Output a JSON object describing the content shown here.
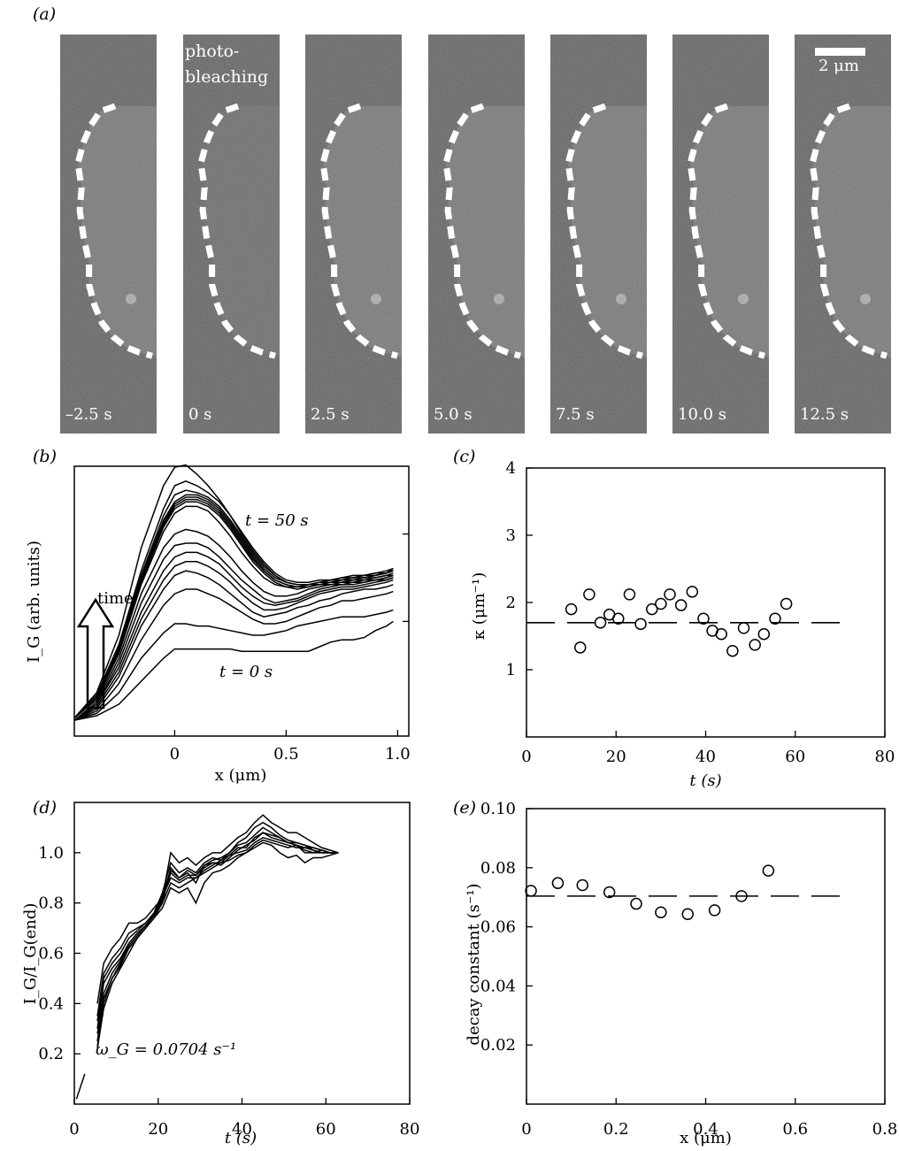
{
  "panel_labels": {
    "a": "(a)",
    "b": "(b)",
    "c": "(c)",
    "d": "(d)",
    "e": "(e)"
  },
  "microscopy": {
    "frames": [
      {
        "time": "–2.5 s"
      },
      {
        "time": "0 s"
      },
      {
        "time": "2.5 s"
      },
      {
        "time": "5.0 s"
      },
      {
        "time": "7.5 s"
      },
      {
        "time": "10.0 s"
      },
      {
        "time": "12.5 s"
      }
    ],
    "photobleach_label_line1": "photo-",
    "photobleach_label_line2": "bleaching",
    "scale_bar_label": "2 μm",
    "colors": {
      "background": "#3a3a3a",
      "outline": "#ffffff"
    }
  },
  "chart_data": [
    {
      "id": "b",
      "type": "line",
      "xlabel": "x (μm)",
      "ylabel": "I_G (arb. units)",
      "xlim": [
        -0.45,
        1.05
      ],
      "xticks": [
        "0",
        "0.5",
        "1.0"
      ],
      "annotations": [
        "t = 50 s",
        "t = 0 s",
        "time"
      ],
      "x": [
        -0.45,
        -0.35,
        -0.25,
        -0.15,
        -0.05,
        0.0,
        0.05,
        0.1,
        0.15,
        0.2,
        0.25,
        0.3,
        0.35,
        0.4,
        0.45,
        0.5,
        0.55,
        0.6,
        0.65,
        0.7,
        0.75,
        0.8,
        0.85,
        0.9,
        0.95,
        0.98
      ],
      "series": [
        {
          "values": [
            0.03,
            0.05,
            0.1,
            0.2,
            0.3,
            0.34,
            0.34,
            0.34,
            0.34,
            0.34,
            0.34,
            0.33,
            0.33,
            0.33,
            0.33,
            0.33,
            0.33,
            0.33,
            0.35,
            0.37,
            0.38,
            0.38,
            0.39,
            0.42,
            0.44,
            0.46
          ]
        },
        {
          "values": [
            0.03,
            0.06,
            0.15,
            0.3,
            0.41,
            0.45,
            0.45,
            0.44,
            0.44,
            0.43,
            0.42,
            0.41,
            0.4,
            0.4,
            0.41,
            0.42,
            0.44,
            0.45,
            0.46,
            0.47,
            0.48,
            0.48,
            0.48,
            0.49,
            0.5,
            0.51
          ]
        },
        {
          "values": [
            0.03,
            0.07,
            0.19,
            0.38,
            0.53,
            0.58,
            0.6,
            0.6,
            0.58,
            0.56,
            0.53,
            0.5,
            0.47,
            0.45,
            0.45,
            0.46,
            0.48,
            0.5,
            0.52,
            0.53,
            0.55,
            0.55,
            0.56,
            0.57,
            0.58,
            0.59
          ]
        },
        {
          "values": [
            0.03,
            0.08,
            0.22,
            0.44,
            0.6,
            0.66,
            0.68,
            0.67,
            0.65,
            0.62,
            0.58,
            0.54,
            0.5,
            0.48,
            0.49,
            0.5,
            0.52,
            0.53,
            0.55,
            0.56,
            0.58,
            0.59,
            0.6,
            0.6,
            0.61,
            0.62
          ]
        },
        {
          "values": [
            0.03,
            0.09,
            0.24,
            0.47,
            0.64,
            0.7,
            0.72,
            0.72,
            0.7,
            0.67,
            0.63,
            0.58,
            0.54,
            0.51,
            0.51,
            0.52,
            0.54,
            0.56,
            0.58,
            0.59,
            0.6,
            0.6,
            0.61,
            0.62,
            0.63,
            0.64
          ]
        },
        {
          "values": [
            0.03,
            0.1,
            0.26,
            0.5,
            0.68,
            0.74,
            0.76,
            0.76,
            0.74,
            0.71,
            0.66,
            0.61,
            0.57,
            0.54,
            0.53,
            0.54,
            0.55,
            0.57,
            0.59,
            0.6,
            0.61,
            0.61,
            0.62,
            0.63,
            0.64,
            0.65
          ]
        },
        {
          "values": [
            0.03,
            0.1,
            0.28,
            0.54,
            0.73,
            0.79,
            0.8,
            0.8,
            0.78,
            0.74,
            0.69,
            0.64,
            0.6,
            0.56,
            0.54,
            0.55,
            0.56,
            0.58,
            0.6,
            0.61,
            0.62,
            0.62,
            0.63,
            0.64,
            0.64,
            0.65
          ]
        },
        {
          "values": [
            0.03,
            0.11,
            0.3,
            0.58,
            0.78,
            0.84,
            0.86,
            0.85,
            0.83,
            0.79,
            0.74,
            0.68,
            0.63,
            0.59,
            0.57,
            0.57,
            0.58,
            0.6,
            0.61,
            0.62,
            0.62,
            0.63,
            0.63,
            0.64,
            0.65,
            0.66
          ]
        },
        {
          "values": [
            0.04,
            0.12,
            0.32,
            0.62,
            0.85,
            0.93,
            0.96,
            0.96,
            0.94,
            0.89,
            0.83,
            0.76,
            0.7,
            0.65,
            0.62,
            0.61,
            0.61,
            0.62,
            0.62,
            0.63,
            0.63,
            0.64,
            0.64,
            0.65,
            0.66,
            0.66
          ]
        },
        {
          "values": [
            0.04,
            0.12,
            0.33,
            0.63,
            0.87,
            0.95,
            0.98,
            0.98,
            0.96,
            0.92,
            0.86,
            0.79,
            0.72,
            0.67,
            0.63,
            0.61,
            0.6,
            0.61,
            0.62,
            0.62,
            0.63,
            0.63,
            0.64,
            0.64,
            0.65,
            0.66
          ]
        },
        {
          "values": [
            0.04,
            0.12,
            0.33,
            0.64,
            0.88,
            0.96,
            0.99,
            0.99,
            0.97,
            0.93,
            0.87,
            0.8,
            0.73,
            0.68,
            0.64,
            0.62,
            0.61,
            0.61,
            0.62,
            0.63,
            0.63,
            0.64,
            0.65,
            0.65,
            0.66,
            0.67
          ]
        },
        {
          "values": [
            0.04,
            0.13,
            0.34,
            0.65,
            0.89,
            0.97,
            1.0,
            1.0,
            0.98,
            0.94,
            0.88,
            0.81,
            0.74,
            0.68,
            0.64,
            0.62,
            0.61,
            0.62,
            0.62,
            0.63,
            0.64,
            0.64,
            0.65,
            0.66,
            0.67,
            0.68
          ]
        },
        {
          "values": [
            0.04,
            0.13,
            0.34,
            0.65,
            0.9,
            0.98,
            1.01,
            1.01,
            0.99,
            0.95,
            0.89,
            0.82,
            0.75,
            0.69,
            0.65,
            0.63,
            0.62,
            0.62,
            0.63,
            0.63,
            0.64,
            0.65,
            0.65,
            0.66,
            0.67,
            0.68
          ]
        },
        {
          "values": [
            0.04,
            0.13,
            0.35,
            0.66,
            0.92,
            1.01,
            1.03,
            1.02,
            1.0,
            0.96,
            0.9,
            0.83,
            0.76,
            0.7,
            0.66,
            0.63,
            0.62,
            0.62,
            0.63,
            0.64,
            0.64,
            0.65,
            0.66,
            0.66,
            0.67,
            0.68
          ]
        },
        {
          "values": [
            0.04,
            0.14,
            0.36,
            0.68,
            0.95,
            1.05,
            1.07,
            1.05,
            1.02,
            0.98,
            0.92,
            0.85,
            0.78,
            0.72,
            0.67,
            0.64,
            0.63,
            0.63,
            0.64,
            0.64,
            0.65,
            0.65,
            0.66,
            0.67,
            0.67,
            0.69
          ]
        },
        {
          "values": [
            0.04,
            0.15,
            0.4,
            0.78,
            1.05,
            1.13,
            1.14,
            1.1,
            1.05,
            0.99,
            0.92,
            0.84,
            0.77,
            0.71,
            0.66,
            0.63,
            0.62,
            0.62,
            0.63,
            0.64,
            0.65,
            0.66,
            0.66,
            0.67,
            0.68,
            0.69
          ]
        }
      ]
    },
    {
      "id": "c",
      "type": "scatter",
      "xlabel": "t (s)",
      "ylabel": "κ (μm⁻¹)",
      "xlim": [
        0,
        80
      ],
      "ylim": [
        0,
        4
      ],
      "xticks": [
        "0",
        "20",
        "40",
        "60",
        "80"
      ],
      "yticks": [
        "1",
        "2",
        "3",
        "4"
      ],
      "mean_line": 1.7,
      "points": [
        [
          10,
          1.9
        ],
        [
          12,
          1.33
        ],
        [
          14,
          2.12
        ],
        [
          16.5,
          1.7
        ],
        [
          18.5,
          1.82
        ],
        [
          20.5,
          1.76
        ],
        [
          23,
          2.12
        ],
        [
          25.5,
          1.68
        ],
        [
          28,
          1.9
        ],
        [
          30,
          1.98
        ],
        [
          32,
          2.12
        ],
        [
          34.5,
          1.96
        ],
        [
          37,
          2.16
        ],
        [
          39.5,
          1.76
        ],
        [
          41.5,
          1.58
        ],
        [
          43.5,
          1.53
        ],
        [
          46,
          1.28
        ],
        [
          48.5,
          1.62
        ],
        [
          51,
          1.37
        ],
        [
          53,
          1.53
        ],
        [
          55.5,
          1.76
        ],
        [
          58,
          1.98
        ]
      ]
    },
    {
      "id": "d",
      "type": "line",
      "xlabel": "t (s)",
      "ylabel": "I_G/I_G(end)",
      "xlim": [
        0,
        80
      ],
      "ylim": [
        0,
        1.2
      ],
      "xticks": [
        "0",
        "20",
        "40",
        "60",
        "80"
      ],
      "yticks": [
        "0.2",
        "0.4",
        "0.6",
        "0.8",
        "1.0"
      ],
      "annotation": "ω_G = 0.0704 s⁻¹",
      "fit_segment": [
        [
          0.5,
          0.02
        ],
        [
          2.5,
          0.12
        ]
      ],
      "x": [
        5.5,
        7,
        9,
        11,
        13,
        15,
        17,
        19,
        21,
        23,
        25,
        27,
        29,
        31,
        33,
        35,
        37,
        39,
        41,
        43,
        45,
        47,
        49,
        51,
        53,
        55,
        57,
        59,
        61,
        63
      ],
      "series": [
        {
          "values": [
            0.25,
            0.42,
            0.5,
            0.55,
            0.62,
            0.66,
            0.7,
            0.74,
            0.8,
            0.88,
            0.86,
            0.88,
            0.9,
            0.92,
            0.94,
            0.96,
            0.97,
            0.99,
            1.0,
            1.03,
            1.05,
            1.04,
            1.03,
            1.02,
            1.03,
            1.01,
            1.0,
            1.01,
            1.0,
            1.0
          ]
        },
        {
          "values": [
            0.3,
            0.48,
            0.54,
            0.58,
            0.64,
            0.68,
            0.71,
            0.75,
            0.82,
            0.9,
            0.88,
            0.9,
            0.9,
            0.93,
            0.95,
            0.97,
            0.99,
            1.0,
            1.01,
            1.04,
            1.06,
            1.05,
            1.04,
            1.03,
            1.02,
            1.02,
            1.01,
            1.0,
            1.0,
            1.0
          ]
        },
        {
          "values": [
            0.22,
            0.38,
            0.48,
            0.54,
            0.6,
            0.66,
            0.7,
            0.76,
            0.8,
            0.94,
            0.9,
            0.92,
            0.88,
            0.95,
            0.96,
            0.95,
            0.98,
            1.01,
            1.03,
            1.05,
            1.08,
            1.06,
            1.05,
            1.04,
            1.03,
            1.0,
            1.0,
            1.0,
            1.0,
            1.0
          ]
        },
        {
          "values": [
            0.35,
            0.52,
            0.58,
            0.62,
            0.68,
            0.7,
            0.72,
            0.76,
            0.84,
            0.96,
            0.92,
            0.94,
            0.92,
            0.96,
            0.98,
            0.97,
            1.0,
            1.04,
            1.06,
            1.1,
            1.12,
            1.1,
            1.07,
            1.05,
            1.04,
            1.03,
            1.01,
            1.0,
            1.0,
            1.0
          ]
        },
        {
          "values": [
            0.4,
            0.56,
            0.62,
            0.66,
            0.72,
            0.72,
            0.74,
            0.78,
            0.82,
            1.0,
            0.96,
            0.98,
            0.95,
            0.98,
            1.0,
            1.0,
            1.03,
            1.06,
            1.08,
            1.12,
            1.15,
            1.12,
            1.1,
            1.08,
            1.08,
            1.06,
            1.04,
            1.02,
            1.01,
            1.0
          ]
        },
        {
          "values": [
            0.23,
            0.4,
            0.5,
            0.56,
            0.62,
            0.66,
            0.7,
            0.74,
            0.78,
            0.86,
            0.84,
            0.86,
            0.8,
            0.88,
            0.92,
            0.93,
            0.95,
            0.98,
            1.0,
            1.02,
            1.04,
            1.03,
            1.0,
            0.98,
            0.99,
            0.96,
            0.98,
            0.98,
            0.99,
            1.0
          ]
        },
        {
          "values": [
            0.28,
            0.44,
            0.52,
            0.57,
            0.63,
            0.67,
            0.71,
            0.75,
            0.81,
            0.92,
            0.89,
            0.91,
            0.91,
            0.94,
            0.96,
            0.96,
            0.99,
            1.02,
            1.02,
            1.06,
            1.08,
            1.07,
            1.06,
            1.04,
            1.03,
            1.02,
            1.02,
            1.01,
            1.0,
            1.0
          ]
        },
        {
          "values": [
            0.33,
            0.5,
            0.56,
            0.6,
            0.66,
            0.69,
            0.72,
            0.76,
            0.83,
            0.93,
            0.9,
            0.93,
            0.91,
            0.95,
            0.97,
            0.98,
            1.0,
            1.03,
            1.04,
            1.07,
            1.1,
            1.08,
            1.06,
            1.04,
            1.04,
            1.03,
            1.02,
            1.01,
            1.0,
            1.0
          ]
        }
      ]
    },
    {
      "id": "e",
      "type": "scatter",
      "xlabel": "x (μm)",
      "ylabel": "decay constant (s⁻¹)",
      "xlim": [
        0,
        0.8
      ],
      "ylim": [
        0,
        0.1
      ],
      "xticks": [
        "0",
        "0.2",
        "0.4",
        "0.6",
        "0.8"
      ],
      "yticks": [
        "0.02",
        "0.04",
        "0.06",
        "0.08",
        "0.10"
      ],
      "mean_line": 0.0704,
      "points": [
        [
          0.01,
          0.0722
        ],
        [
          0.07,
          0.0748
        ],
        [
          0.125,
          0.0741
        ],
        [
          0.185,
          0.0717
        ],
        [
          0.245,
          0.0678
        ],
        [
          0.3,
          0.0649
        ],
        [
          0.36,
          0.0643
        ],
        [
          0.42,
          0.0656
        ],
        [
          0.48,
          0.0704
        ],
        [
          0.54,
          0.079
        ]
      ]
    }
  ]
}
